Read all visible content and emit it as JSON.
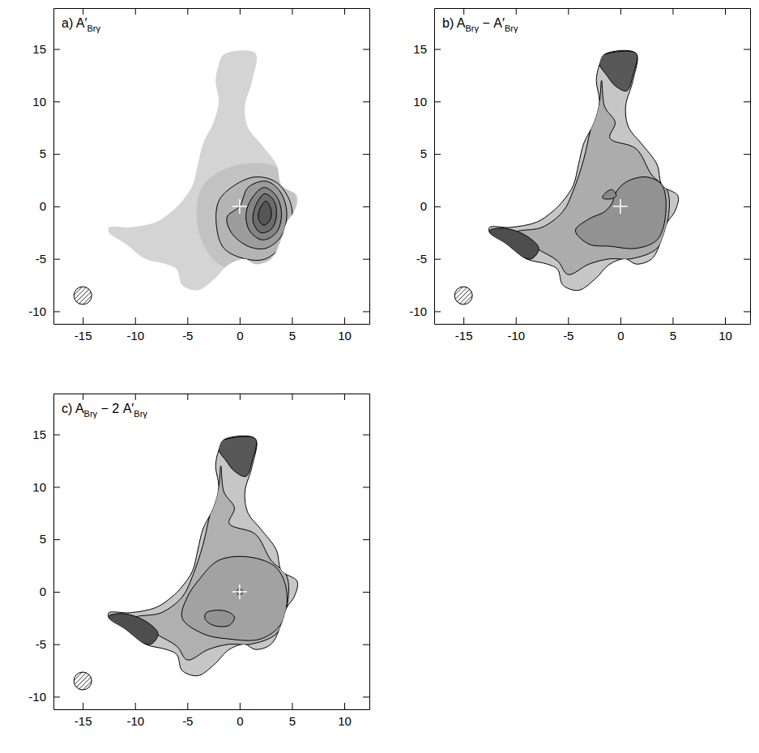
{
  "chart_data": [
    {
      "type": "contour_map",
      "title": [
        "a) A′",
        "Brγ"
      ],
      "xlim": [
        -17.8,
        12.4
      ],
      "ylim": [
        -11.2,
        18.9
      ],
      "xticks": [
        -15,
        -10,
        -5,
        0,
        5,
        10
      ],
      "yticks": [
        -10,
        -5,
        0,
        5,
        10,
        15
      ],
      "series": [
        {
          "color": "#d4d4d4",
          "line_style": "none",
          "x": [
            -1.5,
            1.5,
            1.2,
            0.5,
            0.8,
            2,
            3.5,
            4,
            5.5,
            5.2,
            4.5,
            4,
            3,
            1.5,
            0.5,
            -1,
            -2.5,
            -4,
            -5.5,
            -6,
            -7,
            -9,
            -11,
            -12.5,
            -12.5,
            -10.5,
            -8,
            -6.5,
            -5.5,
            -4.5,
            -4,
            -3.5,
            -2.5,
            -2,
            -2.3,
            -2
          ],
          "y": [
            14.5,
            14.6,
            12,
            9.5,
            7.5,
            6,
            4,
            2,
            1,
            -0.5,
            -1.5,
            -3,
            -5,
            -5.5,
            -5,
            -5.5,
            -7,
            -8,
            -7.5,
            -6,
            -5.5,
            -5,
            -3.5,
            -2.5,
            -2,
            -2,
            -1.5,
            -0.5,
            0.5,
            2,
            4,
            6,
            8,
            10,
            12,
            13.5
          ]
        },
        {
          "color": "#c2c2c2",
          "line_style": "none",
          "x": [
            -3.5,
            0,
            4,
            5.5,
            4.5,
            2,
            -2,
            -4
          ],
          "y": [
            2,
            4,
            3.5,
            0,
            -4,
            -6,
            -5.5,
            -2
          ]
        },
        {
          "color": "#b4b4b4",
          "line_style": "solid",
          "x": [
            -2,
            -0.5,
            1.5,
            3.5,
            4.8,
            5,
            4.2,
            2.5,
            0.5,
            -1.5,
            -2.2
          ],
          "y": [
            0.5,
            2,
            2.8,
            2.3,
            0.5,
            -1.5,
            -3.5,
            -5,
            -5,
            -4,
            -2
          ]
        },
        {
          "color": "#9c9c9c",
          "line_style": "solid",
          "x": [
            0,
            0.8,
            2.5,
            3.8,
            4.5,
            4,
            2.5,
            0.8,
            -0.8,
            -1.2
          ],
          "y": [
            0,
            1.8,
            2.4,
            1.5,
            -0.5,
            -2.8,
            -4,
            -3.8,
            -2.5,
            -1
          ]
        },
        {
          "color": "#848484",
          "line_style": "solid",
          "x": [
            1,
            2.3,
            3.5,
            4,
            3.5,
            2.2,
            1,
            0.6
          ],
          "y": [
            0.5,
            1.8,
            1,
            -0.8,
            -2.5,
            -3.2,
            -2.4,
            -1
          ]
        },
        {
          "color": "#6c6c6c",
          "line_style": "solid",
          "x": [
            1.5,
            2.4,
            3.3,
            3.5,
            3,
            2,
            1.3
          ],
          "y": [
            0,
            1.2,
            0.5,
            -1,
            -2.2,
            -2.5,
            -1.5
          ]
        },
        {
          "color": "#555555",
          "line_style": "solid",
          "x": [
            1.9,
            2.5,
            3,
            2.9,
            2.3,
            1.8
          ],
          "y": [
            -0.3,
            0.5,
            -0.3,
            -1.3,
            -1.8,
            -1.2
          ]
        }
      ],
      "center": {
        "x": 0,
        "y": 0
      },
      "beam": {
        "x": -15,
        "y": -8.5,
        "diameter": 1.7
      }
    },
    {
      "type": "contour_map",
      "title": [
        "b) A",
        "Brγ",
        " − A′",
        "Brγ"
      ],
      "xlim": [
        -17.8,
        12.4
      ],
      "ylim": [
        -11.2,
        18.9
      ],
      "xticks": [
        -15,
        -10,
        -5,
        0,
        5,
        10
      ],
      "yticks": [
        -10,
        -5,
        0,
        5,
        10,
        15
      ],
      "series": [
        {
          "color": "#c6c6c6",
          "line_style": "solid",
          "x": [
            -1.5,
            1.5,
            1.2,
            0.5,
            0.8,
            2,
            3.5,
            4,
            5.5,
            5.2,
            4.5,
            4,
            3,
            1.5,
            0.5,
            -1,
            -2.5,
            -4,
            -5.5,
            -6,
            -7,
            -9,
            -11,
            -12.5,
            -12.5,
            -10.5,
            -8,
            -6.5,
            -5.5,
            -4.5,
            -4,
            -3.5,
            -2.5,
            -2,
            -2.3,
            -2
          ],
          "y": [
            14.5,
            14.6,
            12,
            9.5,
            7.5,
            6,
            4,
            2,
            1,
            -0.5,
            -1.5,
            -3,
            -5,
            -5.5,
            -5,
            -5.5,
            -7,
            -8,
            -7.5,
            -6,
            -5.5,
            -5,
            -3.5,
            -2.5,
            -2,
            -2,
            -1.5,
            -0.5,
            0.5,
            2,
            4,
            6,
            8,
            10,
            12,
            13.5
          ]
        },
        {
          "color": "#acacac",
          "line_style": "solid",
          "x": [
            -1.8,
            -1.5,
            -0.5,
            -1,
            1.5,
            3,
            4.5,
            4.5,
            3.5,
            1,
            -1,
            -3,
            -5,
            -6,
            -8,
            -10,
            -7.5,
            -5.5,
            -4.5,
            -3.5,
            -2.8,
            -2
          ],
          "y": [
            12,
            9.5,
            8,
            6.5,
            5.5,
            3,
            1.5,
            -1.5,
            -4,
            -5,
            -5,
            -5.5,
            -6.5,
            -5.2,
            -4,
            -2.5,
            -2,
            -0.5,
            1.5,
            4.5,
            7.5,
            10
          ]
        },
        {
          "color": "#585858",
          "line_style": "solid",
          "x": [
            -1.5,
            1.5,
            1.2,
            0.6,
            -0.5,
            -1.3,
            -2,
            -2
          ],
          "y": [
            14.5,
            14.6,
            12.5,
            11,
            11.5,
            12.5,
            13.5,
            14.2
          ]
        },
        {
          "color": "#4e4e4e",
          "line_style": "solid",
          "x": [
            -12.5,
            -11,
            -9,
            -7.8,
            -8.5,
            -10,
            -12.3
          ],
          "y": [
            -2.3,
            -2.1,
            -2.8,
            -4,
            -5,
            -4.5,
            -2.8
          ]
        },
        {
          "color": "#929292",
          "line_style": "solid",
          "x": [
            -0.5,
            0.5,
            2.5,
            4,
            4.3,
            3.5,
            1.5,
            -1,
            -3,
            -4.3,
            -3,
            -1.5,
            -0.8
          ],
          "y": [
            1.2,
            2.3,
            2.8,
            2,
            -1,
            -3.2,
            -4,
            -3.8,
            -3.6,
            -2.3,
            -1.2,
            -0.5,
            0.3
          ]
        },
        {
          "color": "#8a8a8a",
          "line_style": "solid",
          "x": [
            -1.6,
            -0.8,
            -0.4,
            -1,
            -1.7
          ],
          "y": [
            1.1,
            1.6,
            1,
            0.7,
            0.8
          ]
        }
      ],
      "center": {
        "x": 0,
        "y": 0
      },
      "beam": {
        "x": -15,
        "y": -8.5,
        "diameter": 1.7
      }
    },
    {
      "type": "contour_map",
      "title": [
        "c) A",
        "Brγ",
        " − 2 A′",
        "Brγ"
      ],
      "xlim": [
        -17.8,
        12.4
      ],
      "ylim": [
        -11.2,
        18.9
      ],
      "xticks": [
        -15,
        -10,
        -5,
        0,
        5,
        10
      ],
      "yticks": [
        -10,
        -5,
        0,
        5,
        10,
        15
      ],
      "series": [
        {
          "color": "#c6c6c6",
          "line_style": "solid",
          "x": [
            -1.5,
            1.5,
            1.2,
            0.5,
            0.8,
            2,
            3.5,
            4,
            5.5,
            5.2,
            4.5,
            4,
            3,
            1.5,
            0.5,
            -1,
            -2.5,
            -4,
            -5.5,
            -6,
            -7,
            -9,
            -11,
            -12.5,
            -12.5,
            -10.5,
            -8,
            -6.5,
            -5.5,
            -4.5,
            -4,
            -3.5,
            -2.5,
            -2,
            -2.3,
            -2
          ],
          "y": [
            14.5,
            14.6,
            12,
            9.5,
            7.5,
            6,
            4,
            2,
            1,
            -0.5,
            -1.5,
            -3,
            -5,
            -5.5,
            -5,
            -5.5,
            -7,
            -8,
            -7.5,
            -6,
            -5.5,
            -5,
            -3.5,
            -2.5,
            -2,
            -2,
            -1.5,
            -0.5,
            0.5,
            2,
            4,
            6,
            8,
            10,
            12,
            13.5
          ]
        },
        {
          "color": "#b0b0b0",
          "line_style": "solid",
          "x": [
            -1.8,
            -1.5,
            -0.5,
            -1,
            1.5,
            3,
            4.5,
            4.5,
            3.5,
            1,
            -1,
            -3,
            -5,
            -6,
            -8,
            -10,
            -7.5,
            -5.5,
            -4.5,
            -3.5,
            -2.8,
            -2
          ],
          "y": [
            12,
            9.5,
            8,
            6.5,
            5.5,
            3,
            1.5,
            -1.5,
            -4,
            -5,
            -5,
            -5.5,
            -6.5,
            -5.2,
            -4,
            -2.5,
            -2,
            -0.5,
            1.5,
            4.5,
            7.5,
            10
          ]
        },
        {
          "color": "#585858",
          "line_style": "solid",
          "x": [
            -1.5,
            1.5,
            1.2,
            0.6,
            -0.5,
            -1.3,
            -2,
            -2
          ],
          "y": [
            14.5,
            14.6,
            12.5,
            11,
            11.5,
            12.5,
            13.5,
            14.2
          ]
        },
        {
          "color": "#4e4e4e",
          "line_style": "solid",
          "x": [
            -12.5,
            -11,
            -9,
            -7.8,
            -8.5,
            -10,
            -12.3
          ],
          "y": [
            -2.3,
            -2.1,
            -2.8,
            -4,
            -5,
            -4.5,
            -2.8
          ]
        },
        {
          "color": "#a2a2a2",
          "line_style": "solid",
          "x": [
            -4,
            -2,
            1,
            3.5,
            4.5,
            4,
            2,
            -1,
            -3.5,
            -5.5,
            -5
          ],
          "y": [
            1,
            3,
            3.3,
            2.3,
            0,
            -3,
            -4.5,
            -4.5,
            -4,
            -2.5,
            -0.5
          ]
        },
        {
          "color": "#929292",
          "line_style": "solid",
          "x": [
            -3.2,
            -1.5,
            -0.5,
            -1,
            -2.5,
            -3.3
          ],
          "y": [
            -2,
            -1.8,
            -2.4,
            -3.2,
            -3.2,
            -2.6
          ]
        },
        {
          "color": "#a2a2a2",
          "line_style": "solid",
          "x": [
            -0.3,
            0,
            0.3,
            0
          ],
          "y": [
            0,
            0.3,
            0,
            -0.3
          ]
        }
      ],
      "center": {
        "x": 0,
        "y": 0
      },
      "beam": {
        "x": -15,
        "y": -8.5,
        "diameter": 1.7
      }
    }
  ]
}
